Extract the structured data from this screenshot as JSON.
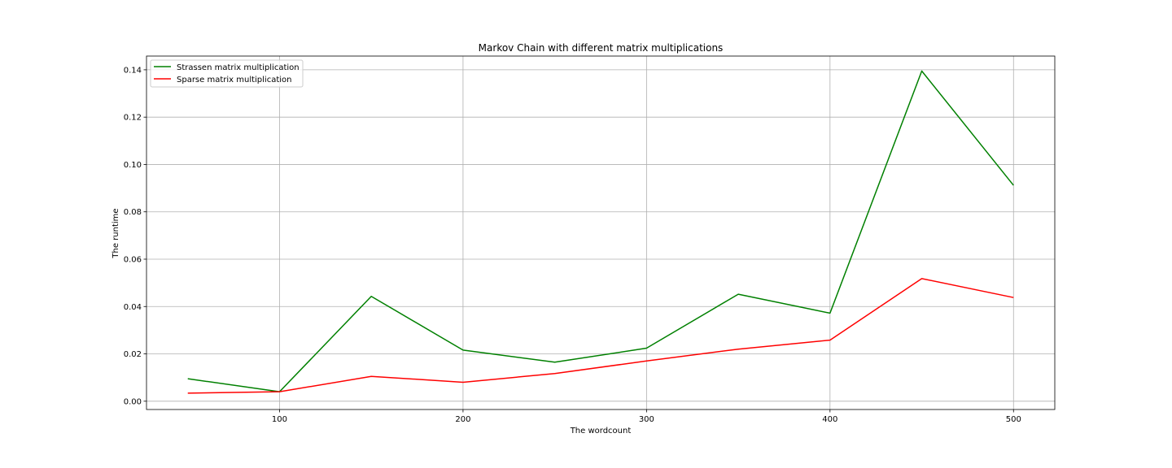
{
  "chart_data": {
    "type": "line",
    "title": "Markov Chain with different matrix multiplications",
    "xlabel": "The wordcount",
    "ylabel": "The runtime",
    "x": [
      50,
      100,
      150,
      200,
      250,
      300,
      350,
      400,
      450,
      500
    ],
    "xlim": [
      27.5,
      522.5
    ],
    "ylim": [
      -0.0035,
      0.1458
    ],
    "xticks": [
      100,
      200,
      300,
      400,
      500
    ],
    "xtick_labels": [
      "100",
      "200",
      "300",
      "400",
      "500"
    ],
    "yticks": [
      0.0,
      0.02,
      0.04,
      0.06,
      0.08,
      0.1,
      0.12,
      0.14
    ],
    "ytick_labels": [
      "0.00",
      "0.02",
      "0.04",
      "0.06",
      "0.08",
      "0.10",
      "0.12",
      "0.14"
    ],
    "grid": true,
    "legend_position": "top-left",
    "series": [
      {
        "name": "Strassen matrix multiplication",
        "color": "#008000",
        "values": [
          0.0095,
          0.004,
          0.0443,
          0.0216,
          0.0165,
          0.0224,
          0.0452,
          0.0372,
          0.1395,
          0.0912
        ]
      },
      {
        "name": "Sparse matrix multiplication",
        "color": "#ff0000",
        "values": [
          0.0034,
          0.004,
          0.0105,
          0.008,
          0.0117,
          0.017,
          0.022,
          0.0258,
          0.0518,
          0.0438
        ]
      }
    ]
  }
}
